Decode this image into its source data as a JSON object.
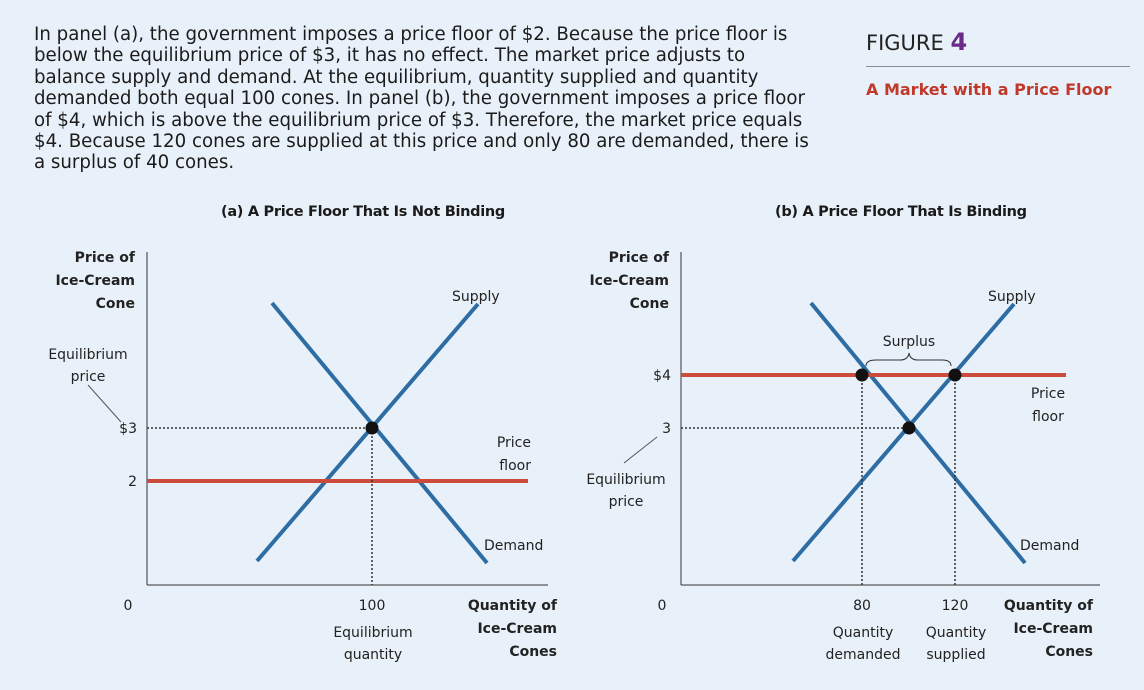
{
  "caption": "In panel (a), the government imposes a price floor of $2. Because the price floor is below the equilibrium price of $3, it has no effect. The market price adjusts to balance supply and demand. At the equilibrium, quantity supplied and quantity demanded both equal 100 cones. In panel (b), the government imposes a price floor of $4, which is above the equilibrium price of $3. Therefore, the market price equals $4. Because 120 cones are supplied at this price and only 80 are demanded, there is a surplus of 40 cones.",
  "figure": {
    "label": "FIGURE",
    "number": "4",
    "title": "A Market with a Price Floor"
  },
  "colors": {
    "curve": "#2e6da4",
    "floor": "#cc4b3c",
    "background": "#e8f1f9",
    "figure_number": "#6b2a8a",
    "figure_title": "#c0392b"
  },
  "chart_data": [
    {
      "type": "line",
      "title": "(a) A Price Floor That Is Not Binding",
      "ylabel": [
        "Price of",
        "Ice-Cream",
        "Cone"
      ],
      "xlabel": [
        "Quantity of",
        "Ice-Cream",
        "Cones"
      ],
      "y_ticks": [
        {
          "value": 3,
          "label": "$3"
        },
        {
          "value": 2,
          "label": "2"
        }
      ],
      "x_ticks": [
        {
          "value": 100,
          "label": "100"
        }
      ],
      "origin_label": "0",
      "price_floor": {
        "value": 2,
        "label": [
          "Price",
          "floor"
        ]
      },
      "equilibrium": {
        "q": 100,
        "p": 3
      },
      "supply_label": "Supply",
      "demand_label": "Demand",
      "annotations": {
        "equilibrium_price": [
          "Equilibrium",
          "price"
        ],
        "equilibrium_quantity": [
          "Equilibrium",
          "quantity"
        ]
      }
    },
    {
      "type": "line",
      "title": "(b) A Price Floor That Is Binding",
      "ylabel": [
        "Price of",
        "Ice-Cream",
        "Cone"
      ],
      "xlabel": [
        "Quantity of",
        "Ice-Cream",
        "Cones"
      ],
      "y_ticks": [
        {
          "value": 4,
          "label": "$4"
        },
        {
          "value": 3,
          "label": "3"
        }
      ],
      "x_ticks": [
        {
          "value": 80,
          "label": "80"
        },
        {
          "value": 120,
          "label": "120"
        }
      ],
      "origin_label": "0",
      "price_floor": {
        "value": 4,
        "label": [
          "Price",
          "floor"
        ]
      },
      "equilibrium": {
        "p": 3
      },
      "quantity_demanded": 80,
      "quantity_supplied": 120,
      "surplus": 40,
      "supply_label": "Supply",
      "demand_label": "Demand",
      "annotations": {
        "surplus": "Surplus",
        "equilibrium_price": [
          "Equilibrium",
          "price"
        ],
        "quantity_demanded": [
          "Quantity",
          "demanded"
        ],
        "quantity_supplied": [
          "Quantity",
          "supplied"
        ]
      }
    }
  ]
}
